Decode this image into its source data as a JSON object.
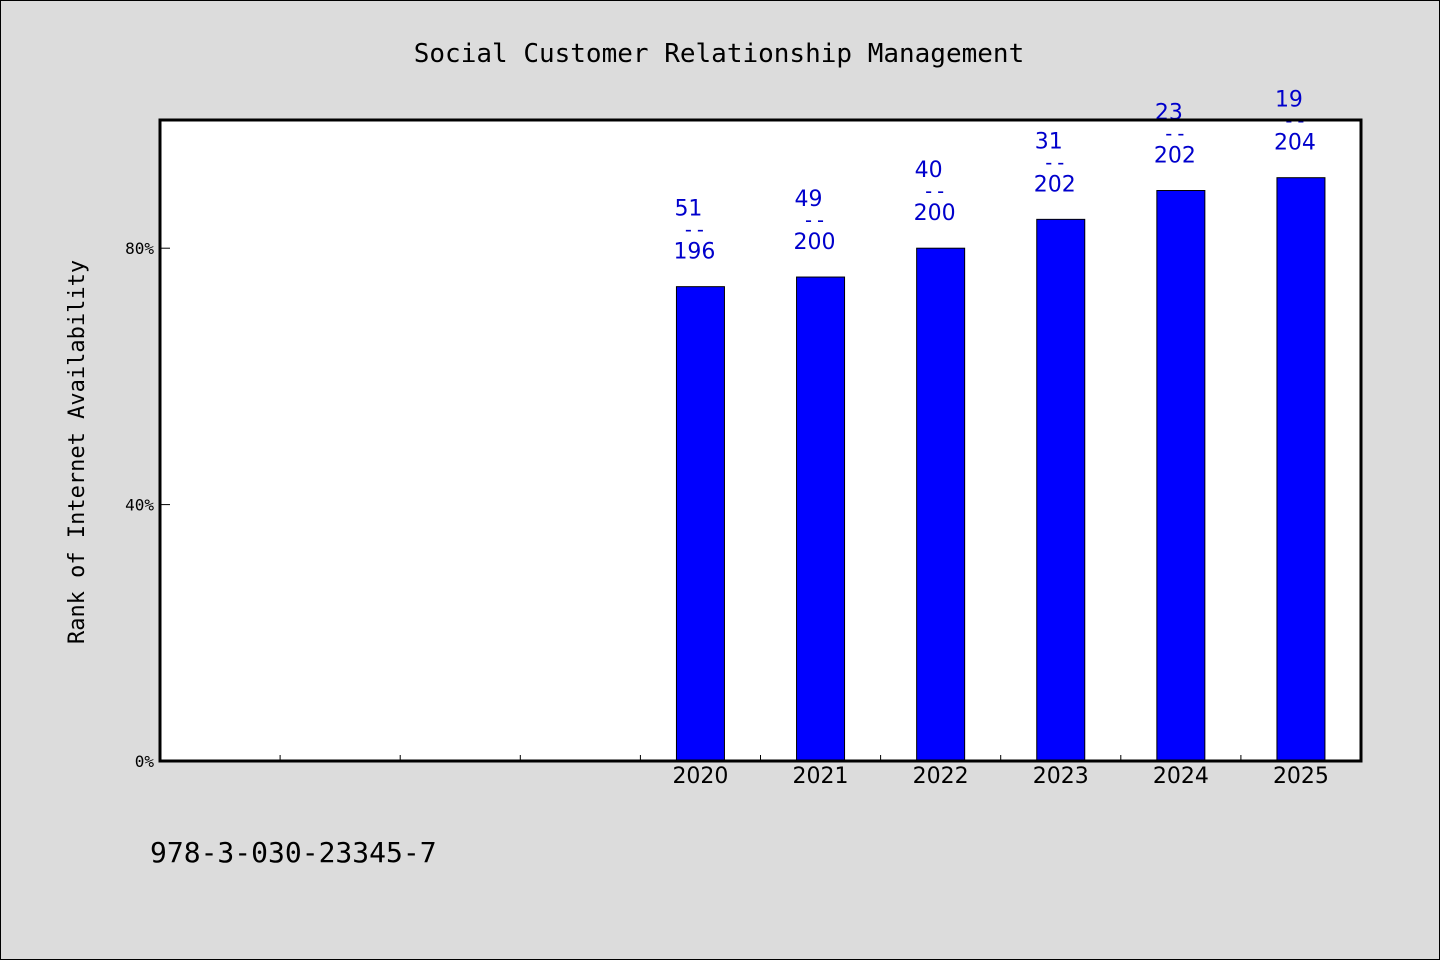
{
  "chart_data": {
    "type": "bar",
    "title": "Social Customer Relationship Management",
    "ylabel": "Rank of Internet Availability",
    "xlabel": "",
    "ylim": [
      0,
      100
    ],
    "y_ticks": [
      0,
      40,
      80
    ],
    "y_tick_labels": [
      "0%",
      "40%",
      "80%"
    ],
    "categories": [
      "",
      "",
      "",
      "",
      "2020",
      "2021",
      "2022",
      "2023",
      "2024",
      "2025"
    ],
    "values": [
      null,
      null,
      null,
      null,
      74,
      75.5,
      80,
      84.5,
      89,
      91
    ],
    "labels": [
      null,
      null,
      null,
      null,
      {
        "rank": "51",
        "sep": "--",
        "total": "196"
      },
      {
        "rank": "49",
        "sep": "--",
        "total": "200"
      },
      {
        "rank": "40",
        "sep": "--",
        "total": "200"
      },
      {
        "rank": "31",
        "sep": "--",
        "total": "202"
      },
      {
        "rank": "23",
        "sep": "--",
        "total": "202"
      },
      {
        "rank": "19",
        "sep": "--",
        "total": "204"
      }
    ],
    "grid": false,
    "bar_color": "#0000ff",
    "label_color": "#0000cc"
  },
  "footer": {
    "isbn": "978-3-030-23345-7"
  }
}
